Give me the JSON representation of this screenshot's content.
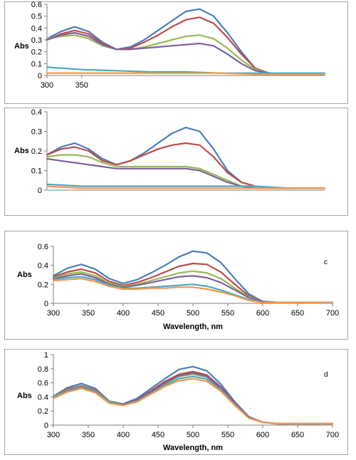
{
  "colors": [
    "#4a7ebb",
    "#be4b48",
    "#98b954",
    "#7d60a0",
    "#46aac5",
    "#f79646"
  ],
  "chart_data": [
    {
      "type": "line",
      "panel_label": "",
      "xlabel": "",
      "ylabel": "Abs",
      "xlim": [
        300,
        700
      ],
      "ylim": [
        0,
        0.6
      ],
      "x_ticks": [
        300,
        350
      ],
      "y_ticks": [
        "0",
        "0.1",
        "0.2",
        "0.3",
        "0.4",
        "0.5",
        "0.6"
      ],
      "grid": false,
      "series": [
        {
          "x": [
            300,
            320,
            340,
            360,
            380,
            400,
            420,
            440,
            460,
            480,
            500,
            520,
            540,
            560,
            580,
            600,
            620,
            640,
            660,
            680,
            700
          ],
          "values": [
            0.31,
            0.37,
            0.41,
            0.37,
            0.28,
            0.22,
            0.24,
            0.3,
            0.38,
            0.46,
            0.54,
            0.56,
            0.5,
            0.36,
            0.2,
            0.06,
            0.02,
            0.01,
            0.01,
            0.01,
            0.01
          ]
        },
        {
          "x": [
            300,
            320,
            340,
            360,
            380,
            400,
            420,
            440,
            460,
            480,
            500,
            520,
            540,
            560,
            580,
            600,
            620,
            640,
            660,
            680,
            700
          ],
          "values": [
            0.3,
            0.35,
            0.38,
            0.35,
            0.27,
            0.22,
            0.23,
            0.28,
            0.34,
            0.41,
            0.47,
            0.49,
            0.44,
            0.32,
            0.18,
            0.06,
            0.02,
            0.01,
            0.01,
            0.01,
            0.01
          ]
        },
        {
          "x": [
            300,
            320,
            340,
            360,
            380,
            400,
            420,
            440,
            460,
            480,
            500,
            520,
            540,
            560,
            580,
            600,
            620,
            640,
            660,
            680,
            700
          ],
          "values": [
            0.31,
            0.33,
            0.34,
            0.31,
            0.25,
            0.22,
            0.22,
            0.24,
            0.27,
            0.3,
            0.33,
            0.34,
            0.31,
            0.23,
            0.13,
            0.05,
            0.02,
            0.01,
            0.01,
            0.01,
            0.01
          ]
        },
        {
          "x": [
            300,
            320,
            340,
            360,
            380,
            400,
            420,
            440,
            460,
            480,
            500,
            520,
            540,
            560,
            580,
            600,
            620,
            640,
            660,
            680,
            700
          ],
          "values": [
            0.3,
            0.34,
            0.36,
            0.33,
            0.26,
            0.22,
            0.22,
            0.23,
            0.24,
            0.25,
            0.26,
            0.27,
            0.25,
            0.18,
            0.1,
            0.04,
            0.02,
            0.01,
            0.01,
            0.01,
            0.01
          ]
        },
        {
          "x": [
            300,
            350,
            400,
            450,
            500,
            550,
            600,
            650,
            700
          ],
          "values": [
            0.07,
            0.05,
            0.04,
            0.03,
            0.03,
            0.02,
            0.02,
            0.02,
            0.02
          ]
        },
        {
          "x": [
            300,
            350,
            400,
            450,
            500,
            550,
            600,
            650,
            700
          ],
          "values": [
            0.02,
            0.02,
            0.02,
            0.02,
            0.02,
            0.02,
            0.01,
            0.01,
            0.01
          ]
        }
      ]
    },
    {
      "type": "line",
      "panel_label": "",
      "xlabel": "",
      "ylabel": "Abs",
      "xlim": [
        300,
        700
      ],
      "ylim": [
        0,
        0.4
      ],
      "x_ticks": [],
      "y_ticks": [
        "0",
        "0.1",
        "0.2",
        "0.3",
        "0.4"
      ],
      "grid": false,
      "series": [
        {
          "x": [
            300,
            320,
            340,
            360,
            380,
            400,
            420,
            440,
            460,
            480,
            500,
            520,
            540,
            560,
            580,
            600,
            620,
            640,
            660,
            680,
            700
          ],
          "values": [
            0.18,
            0.22,
            0.24,
            0.21,
            0.16,
            0.13,
            0.15,
            0.19,
            0.24,
            0.29,
            0.32,
            0.3,
            0.21,
            0.1,
            0.04,
            0.02,
            0.01,
            0.01,
            0.01,
            0.01,
            0.01
          ]
        },
        {
          "x": [
            300,
            320,
            340,
            360,
            380,
            400,
            420,
            440,
            460,
            480,
            500,
            520,
            540,
            560,
            580,
            600,
            620,
            640,
            660,
            680,
            700
          ],
          "values": [
            0.18,
            0.21,
            0.22,
            0.2,
            0.15,
            0.13,
            0.15,
            0.18,
            0.21,
            0.23,
            0.24,
            0.23,
            0.17,
            0.09,
            0.04,
            0.02,
            0.01,
            0.01,
            0.01,
            0.01,
            0.01
          ]
        },
        {
          "x": [
            300,
            320,
            340,
            360,
            380,
            400,
            420,
            440,
            460,
            480,
            500,
            520,
            540,
            560,
            580,
            600,
            620,
            640,
            660,
            680,
            700
          ],
          "values": [
            0.17,
            0.18,
            0.18,
            0.17,
            0.14,
            0.12,
            0.12,
            0.12,
            0.12,
            0.12,
            0.12,
            0.11,
            0.08,
            0.05,
            0.02,
            0.02,
            0.01,
            0.01,
            0.01,
            0.01,
            0.01
          ]
        },
        {
          "x": [
            300,
            320,
            340,
            360,
            380,
            400,
            420,
            440,
            460,
            480,
            500,
            520,
            540,
            560,
            580,
            600,
            620,
            640,
            660,
            680,
            700
          ],
          "values": [
            0.16,
            0.15,
            0.14,
            0.13,
            0.12,
            0.11,
            0.11,
            0.11,
            0.11,
            0.11,
            0.11,
            0.1,
            0.07,
            0.04,
            0.02,
            0.01,
            0.01,
            0.01,
            0.01,
            0.01,
            0.01
          ]
        },
        {
          "x": [
            300,
            350,
            400,
            450,
            500,
            550,
            600,
            650,
            700
          ],
          "values": [
            0.03,
            0.02,
            0.02,
            0.02,
            0.02,
            0.02,
            0.02,
            0.01,
            0.01
          ]
        },
        {
          "x": [
            300,
            350,
            400,
            450,
            500,
            550,
            600,
            650,
            700
          ],
          "values": [
            0.02,
            0.01,
            0.01,
            0.01,
            0.01,
            0.01,
            0.01,
            0.01,
            0.01
          ]
        }
      ]
    },
    {
      "type": "line",
      "panel_label": "c",
      "xlabel": "Wavelength, nm",
      "ylabel": "Abs",
      "xlim": [
        300,
        700
      ],
      "ylim": [
        0,
        0.6
      ],
      "x_ticks": [
        300,
        350,
        400,
        450,
        500,
        550,
        600,
        650,
        700
      ],
      "y_ticks": [
        "0",
        "0.2",
        "0.4",
        "0.6"
      ],
      "grid": false,
      "series": [
        {
          "x": [
            300,
            320,
            340,
            360,
            380,
            400,
            420,
            440,
            460,
            480,
            500,
            520,
            540,
            560,
            580,
            600,
            620,
            640,
            660,
            680,
            700
          ],
          "values": [
            0.29,
            0.37,
            0.41,
            0.36,
            0.26,
            0.21,
            0.25,
            0.32,
            0.4,
            0.49,
            0.55,
            0.53,
            0.43,
            0.26,
            0.1,
            0.02,
            0.01,
            0.01,
            0.01,
            0.01,
            0.01
          ]
        },
        {
          "x": [
            300,
            320,
            340,
            360,
            380,
            400,
            420,
            440,
            460,
            480,
            500,
            520,
            540,
            560,
            580,
            600,
            620,
            640,
            660,
            680,
            700
          ],
          "values": [
            0.28,
            0.33,
            0.36,
            0.32,
            0.23,
            0.19,
            0.22,
            0.27,
            0.33,
            0.39,
            0.42,
            0.41,
            0.33,
            0.2,
            0.08,
            0.02,
            0.01,
            0.01,
            0.01,
            0.01,
            0.01
          ]
        },
        {
          "x": [
            300,
            320,
            340,
            360,
            380,
            400,
            420,
            440,
            460,
            480,
            500,
            520,
            540,
            560,
            580,
            600,
            620,
            640,
            660,
            680,
            700
          ],
          "values": [
            0.27,
            0.31,
            0.33,
            0.29,
            0.21,
            0.18,
            0.2,
            0.24,
            0.28,
            0.32,
            0.34,
            0.32,
            0.26,
            0.16,
            0.07,
            0.02,
            0.01,
            0.01,
            0.01,
            0.01,
            0.01
          ]
        },
        {
          "x": [
            300,
            320,
            340,
            360,
            380,
            400,
            420,
            440,
            460,
            480,
            500,
            520,
            540,
            560,
            580,
            600,
            620,
            640,
            660,
            680,
            700
          ],
          "values": [
            0.26,
            0.29,
            0.31,
            0.27,
            0.2,
            0.17,
            0.19,
            0.22,
            0.25,
            0.28,
            0.29,
            0.27,
            0.22,
            0.14,
            0.06,
            0.02,
            0.01,
            0.01,
            0.01,
            0.01,
            0.01
          ]
        },
        {
          "x": [
            300,
            320,
            340,
            360,
            380,
            400,
            420,
            440,
            460,
            480,
            500,
            520,
            540,
            560,
            580,
            600,
            620,
            640,
            660,
            680,
            700
          ],
          "values": [
            0.25,
            0.27,
            0.28,
            0.25,
            0.19,
            0.16,
            0.16,
            0.17,
            0.18,
            0.19,
            0.2,
            0.18,
            0.14,
            0.09,
            0.04,
            0.01,
            0.01,
            0.01,
            0.01,
            0.01,
            0.01
          ]
        },
        {
          "x": [
            300,
            320,
            340,
            360,
            380,
            400,
            420,
            440,
            460,
            480,
            500,
            520,
            540,
            560,
            580,
            600,
            620,
            640,
            660,
            680,
            700
          ],
          "values": [
            0.24,
            0.25,
            0.26,
            0.23,
            0.18,
            0.15,
            0.15,
            0.16,
            0.16,
            0.17,
            0.17,
            0.15,
            0.12,
            0.08,
            0.03,
            0.01,
            0.01,
            0.01,
            0.01,
            0.01,
            0.01
          ]
        }
      ]
    },
    {
      "type": "line",
      "panel_label": "d",
      "xlabel": "Wavelength, nm",
      "ylabel": "Abs",
      "xlim": [
        300,
        700
      ],
      "ylim": [
        0,
        1
      ],
      "x_ticks": [
        300,
        350,
        400,
        450,
        500,
        550,
        600,
        650,
        700
      ],
      "y_ticks": [
        "0",
        "0.2",
        "0.4",
        "0.6",
        "0.8",
        "1"
      ],
      "grid": false,
      "series": [
        {
          "x": [
            300,
            320,
            340,
            360,
            380,
            400,
            420,
            440,
            460,
            480,
            500,
            520,
            540,
            560,
            580,
            600,
            620,
            640,
            660,
            680,
            700
          ],
          "values": [
            0.41,
            0.53,
            0.59,
            0.52,
            0.34,
            0.3,
            0.38,
            0.52,
            0.66,
            0.79,
            0.83,
            0.77,
            0.58,
            0.33,
            0.12,
            0.04,
            0.02,
            0.02,
            0.02,
            0.02,
            0.02
          ]
        },
        {
          "x": [
            300,
            320,
            340,
            360,
            380,
            400,
            420,
            440,
            460,
            480,
            500,
            520,
            540,
            560,
            580,
            600,
            620,
            640,
            660,
            680,
            700
          ],
          "values": [
            0.4,
            0.51,
            0.56,
            0.5,
            0.33,
            0.29,
            0.36,
            0.49,
            0.62,
            0.72,
            0.76,
            0.71,
            0.54,
            0.31,
            0.11,
            0.04,
            0.02,
            0.02,
            0.02,
            0.02,
            0.02
          ]
        },
        {
          "x": [
            300,
            320,
            340,
            360,
            380,
            400,
            420,
            440,
            460,
            480,
            500,
            520,
            540,
            560,
            580,
            600,
            620,
            640,
            660,
            680,
            700
          ],
          "values": [
            0.4,
            0.5,
            0.55,
            0.49,
            0.33,
            0.29,
            0.35,
            0.47,
            0.59,
            0.69,
            0.72,
            0.68,
            0.52,
            0.3,
            0.11,
            0.04,
            0.02,
            0.02,
            0.02,
            0.02,
            0.02
          ]
        },
        {
          "x": [
            300,
            320,
            340,
            360,
            380,
            400,
            420,
            440,
            460,
            480,
            500,
            520,
            540,
            560,
            580,
            600,
            620,
            640,
            660,
            680,
            700
          ],
          "values": [
            0.39,
            0.49,
            0.54,
            0.48,
            0.32,
            0.29,
            0.35,
            0.47,
            0.6,
            0.7,
            0.74,
            0.69,
            0.52,
            0.3,
            0.11,
            0.04,
            0.02,
            0.02,
            0.02,
            0.02,
            0.02
          ]
        },
        {
          "x": [
            300,
            320,
            340,
            360,
            380,
            400,
            420,
            440,
            460,
            480,
            500,
            520,
            540,
            560,
            580,
            600,
            620,
            640,
            660,
            680,
            700
          ],
          "values": [
            0.39,
            0.48,
            0.53,
            0.47,
            0.32,
            0.28,
            0.34,
            0.45,
            0.57,
            0.66,
            0.69,
            0.65,
            0.5,
            0.29,
            0.1,
            0.04,
            0.02,
            0.02,
            0.02,
            0.02,
            0.02
          ]
        },
        {
          "x": [
            300,
            320,
            340,
            360,
            380,
            400,
            420,
            440,
            460,
            480,
            500,
            520,
            540,
            560,
            580,
            600,
            620,
            640,
            660,
            680,
            700
          ],
          "values": [
            0.38,
            0.47,
            0.52,
            0.46,
            0.31,
            0.28,
            0.33,
            0.44,
            0.55,
            0.63,
            0.66,
            0.62,
            0.48,
            0.28,
            0.1,
            0.04,
            0.02,
            0.02,
            0.02,
            0.02,
            0.02
          ]
        }
      ]
    }
  ]
}
